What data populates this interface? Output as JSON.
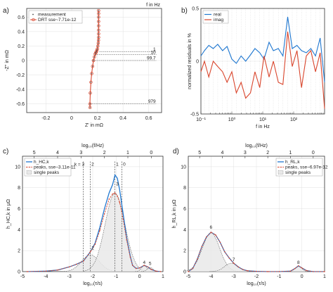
{
  "chart_data": [
    {
      "panel": "a)",
      "type": "line",
      "title": "",
      "xlabel": "Z' in mΩ",
      "ylabel": "-Z'' in mΩ",
      "top_label": "f in Hz",
      "xlim": [
        -0.35,
        0.7
      ],
      "ylim": [
        -0.72,
        0.72
      ],
      "xticks": [
        -0.2,
        0,
        0.2,
        0.4,
        0.6
      ],
      "xtick_labels": [
        "-0.2",
        "0",
        "0.2",
        "0.4",
        "0.6"
      ],
      "yticks": [
        -0.6,
        -0.4,
        -0.2,
        0,
        0.2,
        0.4,
        0.6
      ],
      "ytick_labels": [
        "-0.6",
        "-0.4",
        "-0.2",
        "0",
        "0.2",
        "0.4",
        "0.6"
      ],
      "legend": {
        "position": "top-left",
        "entries": [
          "measurement",
          "DRT sse~7.71e-12"
        ]
      },
      "series": [
        {
          "name": "measurement",
          "x": [
            0.143,
            0.142,
            0.145,
            0.15,
            0.156,
            0.163,
            0.17,
            0.177,
            0.183,
            0.188,
            0.192,
            0.196,
            0.2,
            0.204,
            0.207,
            0.209,
            0.21,
            0.21,
            0.21,
            0.21,
            0.21,
            0.21,
            0.21,
            0.21
          ],
          "y": [
            -0.65,
            -0.6,
            -0.45,
            -0.3,
            -0.18,
            -0.08,
            0.0,
            0.05,
            0.09,
            0.11,
            0.12,
            0.14,
            0.16,
            0.2,
            0.24,
            0.28,
            0.32,
            0.37,
            0.42,
            0.48,
            0.54,
            0.6,
            0.65,
            0.69
          ]
        },
        {
          "name": "DRT sse~7.71e-12",
          "x": [
            0.143,
            0.142,
            0.145,
            0.15,
            0.156,
            0.163,
            0.17,
            0.177,
            0.183,
            0.188,
            0.192,
            0.196,
            0.2,
            0.204,
            0.207,
            0.209,
            0.21,
            0.21,
            0.21,
            0.21,
            0.21,
            0.21,
            0.21,
            0.21
          ],
          "y": [
            -0.65,
            -0.6,
            -0.45,
            -0.3,
            -0.18,
            -0.08,
            0.0,
            0.05,
            0.09,
            0.11,
            0.12,
            0.14,
            0.16,
            0.2,
            0.24,
            0.28,
            0.32,
            0.37,
            0.42,
            0.48,
            0.54,
            0.6,
            0.65,
            0.69
          ]
        }
      ],
      "annotations": [
        {
          "text": "1",
          "x": 0.217,
          "y": 0.12,
          "label_x": 0.66
        },
        {
          "text": "10",
          "x": 0.183,
          "y": 0.08,
          "label_x": 0.66
        },
        {
          "text": "99.7",
          "x": 0.156,
          "y": 0.0,
          "label_x": 0.66
        },
        {
          "text": "979",
          "x": 0.142,
          "y": -0.6,
          "label_x": 0.66
        }
      ]
    },
    {
      "panel": "b)",
      "type": "line",
      "title": "",
      "xlabel": "f in Hz",
      "ylabel": "normalized residuals in %",
      "xscale": "log",
      "xlim": [
        0.1,
        1000
      ],
      "ylim": [
        -0.5,
        0.5
      ],
      "xtick_values": [
        0.1,
        1,
        10,
        100
      ],
      "xtick_labels": [
        "10⁻¹",
        "10⁰",
        "10¹",
        "10²"
      ],
      "yticks": [
        -0.5,
        0,
        0.5
      ],
      "ytick_labels": [
        "-0.5",
        "0",
        "0.5"
      ],
      "legend": {
        "position": "top-left",
        "entries": [
          "real",
          "imag"
        ]
      },
      "series": [
        {
          "name": "real",
          "color": "#1f77d0",
          "x": [
            0.1,
            0.13,
            0.18,
            0.25,
            0.35,
            0.5,
            0.7,
            1.0,
            1.4,
            2.0,
            2.8,
            4.0,
            5.6,
            8.0,
            11,
            16,
            22,
            32,
            45,
            64,
            90,
            128,
            180,
            256,
            360,
            510,
            720,
            1000
          ],
          "y": [
            0.05,
            0.1,
            0.15,
            0.12,
            0.16,
            0.1,
            0.14,
            0.02,
            -0.02,
            0.05,
            0.0,
            0.06,
            0.12,
            0.08,
            0.02,
            0.18,
            0.1,
            0.12,
            0.05,
            0.42,
            0.12,
            0.15,
            0.1,
            0.08,
            0.12,
            0.05,
            0.22,
            -0.2
          ]
        },
        {
          "name": "imag",
          "color": "#d9452c",
          "x": [
            0.1,
            0.13,
            0.18,
            0.25,
            0.35,
            0.5,
            0.7,
            1.0,
            1.4,
            2.0,
            2.8,
            4.0,
            5.6,
            8.0,
            11,
            16,
            22,
            32,
            45,
            64,
            90,
            128,
            180,
            256,
            360,
            510,
            720,
            1000
          ],
          "y": [
            -0.1,
            0.0,
            -0.15,
            0.0,
            -0.05,
            -0.1,
            -0.2,
            -0.1,
            -0.3,
            -0.2,
            -0.35,
            -0.3,
            -0.1,
            -0.25,
            0.05,
            -0.15,
            0.0,
            -0.2,
            -0.22,
            0.28,
            -0.05,
            0.1,
            -0.25,
            0.05,
            0.1,
            -0.1,
            0.08,
            -0.45
          ]
        }
      ]
    },
    {
      "panel": "c)",
      "type": "line",
      "title": "",
      "xlabel": "log₁₀(τ/s)",
      "ylabel": "h_HC,k in μΩ",
      "top_axis_label": "log₁₀(f/Hz)",
      "xlim": [
        -5,
        1
      ],
      "ylim": [
        0,
        11
      ],
      "xticks": [
        -5,
        -4,
        -3,
        -2,
        -1,
        0,
        1
      ],
      "xtick_labels": [
        "-5",
        "-4",
        "-3",
        "-2",
        "-1",
        "0",
        "1"
      ],
      "top_ticks": [
        -4.5,
        -3.5,
        -2.5,
        -1.5,
        -0.5,
        0.5
      ],
      "top_tick_labels": [
        "5",
        "4",
        "3",
        "2",
        "1",
        "0"
      ],
      "yticks": [
        0,
        2,
        4,
        6,
        8,
        10
      ],
      "ytick_labels": [
        "0",
        "2",
        "4",
        "6",
        "8",
        "10"
      ],
      "legend": {
        "position": "top-left",
        "entries": [
          "h_HC,k",
          "peaks, sse~3.11e-11",
          "single peaks"
        ]
      },
      "tau_label": "τ_W,k:",
      "tau_lines": [
        {
          "text": "k = 3",
          "x": -2.4
        },
        {
          "text": "2",
          "x": -2.1
        },
        {
          "text": "1",
          "x": -1.05
        },
        {
          "text": "0",
          "x": -0.75
        }
      ],
      "peak_labels": [
        {
          "text": "2",
          "x": -2.0,
          "y": 2.1
        },
        {
          "text": "3",
          "x": -0.95,
          "y": 8.2
        },
        {
          "text": "4",
          "x": 0.2,
          "y": 0.75
        },
        {
          "text": "5",
          "x": 0.45,
          "y": 0.65
        }
      ],
      "series": [
        {
          "name": "h_HC,k",
          "color": "#1f77d0",
          "x": [
            -4.8,
            -4.0,
            -3.5,
            -3.0,
            -2.7,
            -2.4,
            -2.1,
            -1.9,
            -1.7,
            -1.5,
            -1.3,
            -1.15,
            -1.05,
            -0.95,
            -0.85,
            -0.7,
            -0.55,
            -0.4,
            -0.3,
            -0.15,
            0.0,
            0.2,
            0.35,
            0.5,
            0.7,
            0.9
          ],
          "y": [
            0.0,
            0.05,
            0.15,
            0.45,
            0.7,
            1.0,
            1.9,
            2.7,
            4.2,
            6.0,
            7.5,
            8.3,
            9.2,
            8.9,
            7.8,
            5.5,
            3.2,
            1.5,
            0.6,
            0.3,
            0.35,
            0.6,
            0.45,
            0.2,
            0.05,
            0.0
          ]
        },
        {
          "name": "peaks, sse~3.11e-11",
          "color": "#d9452c",
          "x": [
            -4.8,
            -4.0,
            -3.5,
            -3.0,
            -2.7,
            -2.4,
            -2.1,
            -1.9,
            -1.7,
            -1.5,
            -1.3,
            -1.15,
            -1.05,
            -0.95,
            -0.85,
            -0.7,
            -0.55,
            -0.4,
            -0.3,
            -0.15,
            0.0,
            0.2,
            0.35,
            0.5,
            0.7,
            0.9
          ],
          "y": [
            0.0,
            0.05,
            0.15,
            0.45,
            0.7,
            1.0,
            1.9,
            2.6,
            3.9,
            5.5,
            6.9,
            7.4,
            7.5,
            7.2,
            6.6,
            5.0,
            3.0,
            1.4,
            0.6,
            0.3,
            0.35,
            0.6,
            0.45,
            0.2,
            0.05,
            0.0
          ]
        }
      ],
      "single_peaks": [
        {
          "center": -2.1,
          "height": 1.6,
          "width": 0.38
        },
        {
          "center": -1.05,
          "height": 7.5,
          "width": 0.42
        },
        {
          "center": 0.2,
          "height": 0.55,
          "width": 0.12
        },
        {
          "center": 0.45,
          "height": 0.4,
          "width": 0.12
        }
      ]
    },
    {
      "panel": "d)",
      "type": "line",
      "title": "",
      "xlabel": "log₁₀(τ/s)",
      "ylabel": "h_RL,k in μΩ",
      "top_axis_label": "log₁₀(f/Hz)",
      "xlim": [
        -5,
        1
      ],
      "ylim": [
        0,
        11
      ],
      "xticks": [
        -5,
        -4,
        -3,
        -2,
        -1,
        0,
        1
      ],
      "xtick_labels": [
        "-5",
        "-4",
        "-3",
        "-2",
        "-1",
        "0",
        "1"
      ],
      "top_ticks": [
        -4.5,
        -3.5,
        -2.5,
        -1.5,
        -0.5,
        0.5
      ],
      "top_tick_labels": [
        "5",
        "4",
        "3",
        "2",
        "1",
        "0"
      ],
      "yticks": [
        0,
        2,
        4,
        6,
        8,
        10
      ],
      "ytick_labels": [
        "0",
        "2",
        "4",
        "6",
        "8",
        "10"
      ],
      "legend": {
        "position": "top-right",
        "entries": [
          "h_RL,k",
          "peaks, sse~6.97e-12",
          "single peaks"
        ]
      },
      "peak_labels": [
        {
          "text": "6",
          "x": -4.0,
          "y": 4.1
        },
        {
          "text": "7",
          "x": -3.0,
          "y": 1.0
        },
        {
          "text": "8",
          "x": -0.15,
          "y": 0.75
        }
      ],
      "series": [
        {
          "name": "h_RL,k",
          "color": "#1f77d0",
          "x": [
            -5.0,
            -4.8,
            -4.6,
            -4.4,
            -4.2,
            -4.0,
            -3.8,
            -3.6,
            -3.4,
            -3.2,
            -3.0,
            -2.8,
            -2.6,
            -2.4,
            -2.0,
            -1.5,
            -1.0,
            -0.5,
            -0.3,
            -0.15,
            0.0,
            0.2,
            0.5,
            1.0
          ],
          "y": [
            0.0,
            0.3,
            1.2,
            2.4,
            3.3,
            3.75,
            3.5,
            2.8,
            1.9,
            1.3,
            0.8,
            0.45,
            0.2,
            0.08,
            0.02,
            0.0,
            0.0,
            0.05,
            0.3,
            0.55,
            0.35,
            0.1,
            0.0,
            0.0
          ]
        },
        {
          "name": "peaks, sse~6.97e-12",
          "color": "#d9452c",
          "x": [
            -5.0,
            -4.8,
            -4.6,
            -4.4,
            -4.2,
            -4.0,
            -3.8,
            -3.6,
            -3.4,
            -3.2,
            -3.0,
            -2.8,
            -2.6,
            -2.4,
            -2.0,
            -1.5,
            -1.0,
            -0.5,
            -0.3,
            -0.15,
            0.0,
            0.2,
            0.5,
            1.0
          ],
          "y": [
            0.0,
            0.3,
            1.2,
            2.4,
            3.3,
            3.75,
            3.5,
            2.8,
            1.9,
            1.3,
            0.8,
            0.45,
            0.2,
            0.08,
            0.02,
            0.0,
            0.0,
            0.05,
            0.3,
            0.55,
            0.35,
            0.1,
            0.0,
            0.0
          ]
        }
      ],
      "single_peaks": [
        {
          "center": -4.0,
          "height": 3.7,
          "width": 0.38
        },
        {
          "center": -3.1,
          "height": 0.8,
          "width": 0.3
        },
        {
          "center": -0.15,
          "height": 0.5,
          "width": 0.15
        }
      ]
    }
  ]
}
